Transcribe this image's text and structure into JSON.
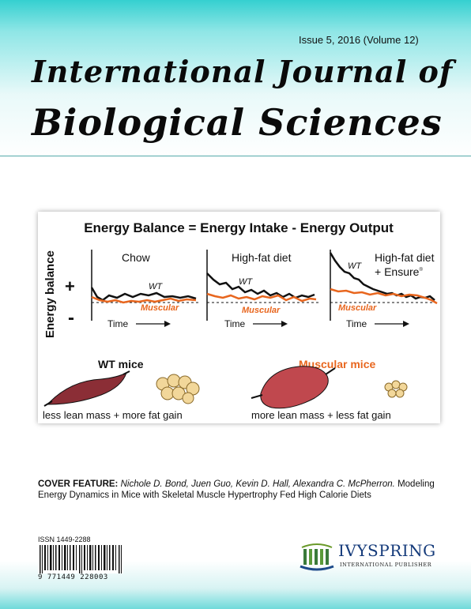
{
  "cover": {
    "issue_text": "Issue 5, 2016 (Volume 12)",
    "title_line1": "International Journal of",
    "title_line2": "Biological Sciences"
  },
  "figure": {
    "heading": "Energy Balance = Energy Intake - Energy Output",
    "y_axis_label": "Energy balance",
    "plus_sign": "+",
    "minus_sign": "-",
    "time_label": "Time",
    "panels": [
      {
        "title": "Chow",
        "wt_label": "WT",
        "muscular_label": "Muscular"
      },
      {
        "title": "High-fat diet",
        "wt_label": "WT",
        "muscular_label": "Muscular"
      },
      {
        "title": "High-fat diet",
        "title2": "+ Ensure",
        "superscript": "®",
        "wt_label": "WT",
        "muscular_label": "Muscular"
      }
    ],
    "wt_mice_label": "WT mice",
    "muscular_mice_label": "Muscular mice",
    "wt_caption": "less lean mass + more fat gain",
    "muscular_caption": "more lean mass + less fat gain",
    "colors": {
      "wt": "#111111",
      "muscular": "#e8661e"
    }
  },
  "feature": {
    "label": "COVER FEATURE:",
    "authors": "Nichole D. Bond, Juen Guo, Kevin D. Hall, Alexandra C. McPherron.",
    "article_title": "Modeling Energy Dynamics in Mice with Skeletal Muscle Hypertrophy Fed High Calorie Diets"
  },
  "barcode": {
    "issn": "ISSN 1449-2288",
    "number": "9 771449 228003"
  },
  "publisher": {
    "name": "IVYSPRING",
    "subtitle": "INTERNATIONAL PUBLISHER",
    "icon": "ivyspring-logo-icon"
  }
}
